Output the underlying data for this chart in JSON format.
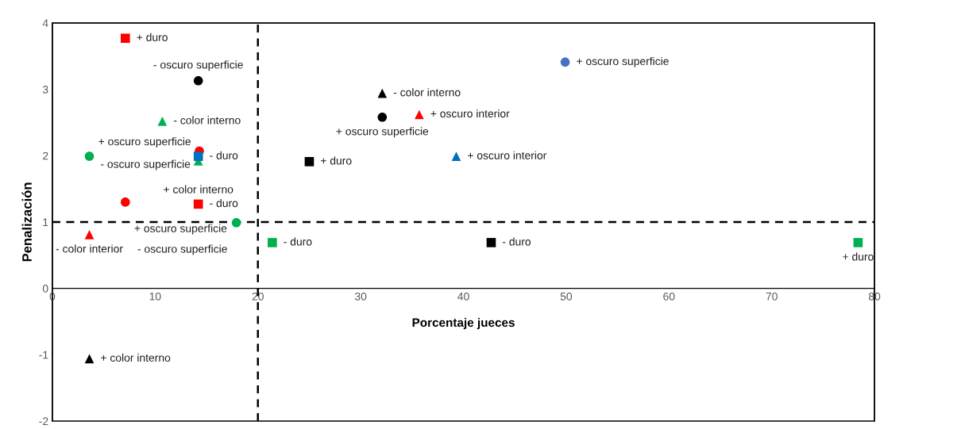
{
  "chart_data": {
    "type": "scatter",
    "xlabel": "Porcentaje jueces",
    "ylabel": "Penalización",
    "xlim": [
      0,
      80
    ],
    "xticks": [
      0,
      10,
      20,
      30,
      40,
      50,
      60,
      70,
      80
    ],
    "ylim": [
      -2,
      4
    ],
    "yticks": [
      -2,
      -1,
      0,
      1,
      2,
      3,
      4
    ],
    "grid": false,
    "series": [
      {
        "color": "#ff0000",
        "marker": "square",
        "x": [
          7.1,
          14.2
        ],
        "values": [
          3.77,
          1.27
        ]
      },
      {
        "color": "#000000",
        "marker": "circle",
        "x": [
          14.2,
          32.1
        ],
        "values": [
          3.13,
          2.58
        ]
      },
      {
        "color": "#00b050",
        "marker": "triangle",
        "x": [
          10.7,
          14.2
        ],
        "values": [
          2.52,
          1.92
        ]
      },
      {
        "color": "#00b050",
        "marker": "circle",
        "x": [
          3.6,
          17.9
        ],
        "values": [
          1.99,
          0.99
        ]
      },
      {
        "color": "#ff0000",
        "marker": "circle",
        "x": [
          14.3,
          7.1
        ],
        "values": [
          2.07,
          1.3
        ]
      },
      {
        "color": "#0070c0",
        "marker": "square",
        "x": [
          14.2
        ],
        "values": [
          1.99
        ]
      },
      {
        "color": "#ff0000",
        "marker": "triangle",
        "x": [
          3.6,
          35.7
        ],
        "values": [
          0.81,
          2.62
        ]
      },
      {
        "color": "#00b050",
        "marker": "square",
        "x": [
          21.4,
          78.4
        ],
        "values": [
          0.69,
          0.69
        ]
      },
      {
        "color": "#000000",
        "marker": "triangle",
        "x": [
          32.1,
          3.6
        ],
        "values": [
          2.94,
          -1.06
        ]
      },
      {
        "color": "#000000",
        "marker": "square",
        "x": [
          25.0,
          42.7
        ],
        "values": [
          1.91,
          0.69
        ]
      },
      {
        "color": "#0070c0",
        "marker": "triangle",
        "x": [
          39.3
        ],
        "values": [
          1.99
        ]
      },
      {
        "color": "#4472c4",
        "marker": "circle",
        "x": [
          49.9
        ],
        "values": [
          3.41
        ]
      }
    ],
    "ref_lines": [
      {
        "axis": "x",
        "value": 20,
        "color": "#000000",
        "line_style": "dashed"
      },
      {
        "axis": "y",
        "value": 1,
        "color": "#000000",
        "line_style": "dashed"
      }
    ],
    "annotations": [
      {
        "text": "+ duro",
        "x": 7.1,
        "y": 3.77
      },
      {
        "text": "- oscuro superficie",
        "x": 14.2,
        "y": 3.13
      },
      {
        "text": "- color interno",
        "x": 10.7,
        "y": 2.52
      },
      {
        "text": "+ oscuro superficie",
        "x": 3.6,
        "y": 1.99
      },
      {
        "text": "- duro",
        "x": 14.2,
        "y": 1.99
      },
      {
        "text": "- oscuro superficie",
        "x": 14.3,
        "y": 2.07
      },
      {
        "text": "+ color interno",
        "x": 14.2,
        "y": 1.92
      },
      {
        "text": "+ oscuro superficie",
        "x": 7.1,
        "y": 1.3
      },
      {
        "text": "- duro",
        "x": 14.2,
        "y": 1.27
      },
      {
        "text": "- oscuro superficie",
        "x": 17.9,
        "y": 0.99
      },
      {
        "text": "- color interior",
        "x": 3.6,
        "y": 0.81
      },
      {
        "text": "- duro",
        "x": 21.4,
        "y": 0.69
      },
      {
        "text": "- color interno",
        "x": 32.1,
        "y": 2.94
      },
      {
        "text": "+ oscuro interior",
        "x": 35.7,
        "y": 2.62
      },
      {
        "text": "+ oscuro superficie",
        "x": 32.1,
        "y": 2.58
      },
      {
        "text": "+ duro",
        "x": 25.0,
        "y": 1.91
      },
      {
        "text": "+ oscuro interior",
        "x": 39.3,
        "y": 1.99
      },
      {
        "text": "+ oscuro superficie",
        "x": 49.9,
        "y": 3.41
      },
      {
        "text": "- duro",
        "x": 42.7,
        "y": 0.69
      },
      {
        "text": "+ duro",
        "x": 78.4,
        "y": 0.69
      },
      {
        "text": "+ color interno",
        "x": 3.6,
        "y": -1.06
      }
    ]
  }
}
